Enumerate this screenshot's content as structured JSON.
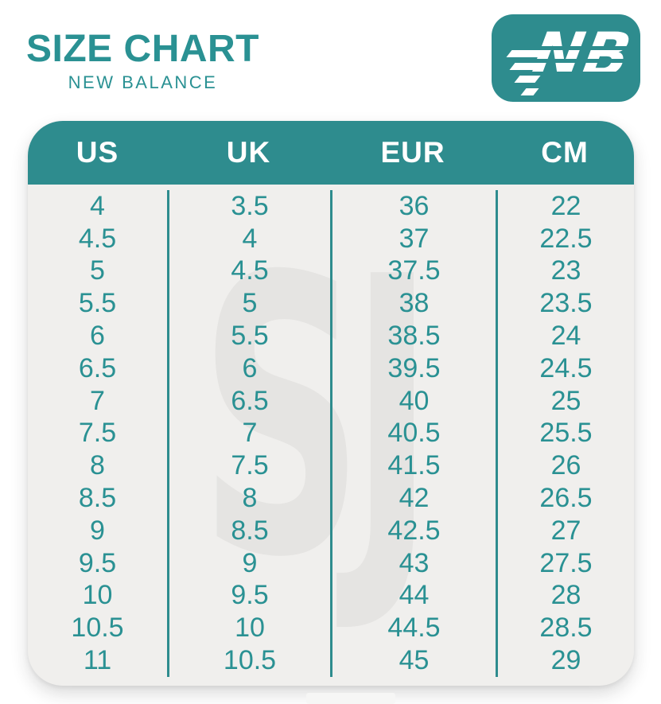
{
  "page": {
    "title": "SIZE CHART",
    "subtitle": "NEW BALANCE"
  },
  "logo": {
    "brand": "New Balance",
    "monogram": "NB"
  },
  "chart_data": {
    "type": "table",
    "title": "SIZE CHART",
    "subtitle": "NEW BALANCE",
    "columns": [
      "US",
      "UK",
      "EUR",
      "CM"
    ],
    "rows": [
      [
        "4",
        "3.5",
        "36",
        "22"
      ],
      [
        "4.5",
        "4",
        "37",
        "22.5"
      ],
      [
        "5",
        "4.5",
        "37.5",
        "23"
      ],
      [
        "5.5",
        "5",
        "38",
        "23.5"
      ],
      [
        "6",
        "5.5",
        "38.5",
        "24"
      ],
      [
        "6.5",
        "6",
        "39.5",
        "24.5"
      ],
      [
        "7",
        "6.5",
        "40",
        "25"
      ],
      [
        "7.5",
        "7",
        "40.5",
        "25.5"
      ],
      [
        "8",
        "7.5",
        "41.5",
        "26"
      ],
      [
        "8.5",
        "8",
        "42",
        "26.5"
      ],
      [
        "9",
        "8.5",
        "42.5",
        "27"
      ],
      [
        "9.5",
        "9",
        "43",
        "27.5"
      ],
      [
        "10",
        "9.5",
        "44",
        "28"
      ],
      [
        "10.5",
        "10",
        "44.5",
        "28.5"
      ],
      [
        "11",
        "10.5",
        "45",
        "29"
      ]
    ]
  },
  "decor": {
    "watermark_glyph": "SJ"
  },
  "colors": {
    "teal": "#2e8c8e",
    "teal_text": "#2a9193",
    "card_bg": "#f0efed",
    "watermark": "#e5e4e2",
    "header_text": "#ffffff"
  }
}
